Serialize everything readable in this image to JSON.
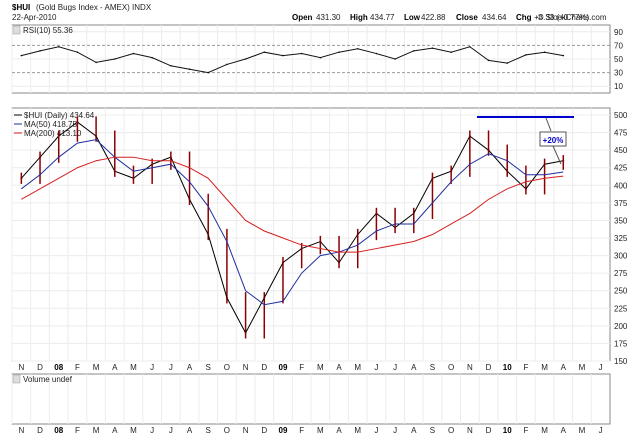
{
  "header": {
    "symbol": "$HUI",
    "name": "(Gold Bugs Index - AMEX) INDX",
    "date": "22-Apr-2010",
    "credit": "© StockCharts.com",
    "ohlc": {
      "open_label": "Open",
      "open": "431.30",
      "high_label": "High",
      "high": "434.77",
      "low_label": "Low",
      "low": "422.88",
      "close_label": "Close",
      "close": "434.64",
      "chg_label": "Chg",
      "chg": "+3.33 (+0.77%)"
    }
  },
  "rsi_panel": {
    "label": "RSI(10) 55.36",
    "yticks": [
      "90",
      "70",
      "50",
      "30",
      "10"
    ]
  },
  "price_panel": {
    "legend": [
      {
        "text": "$HUI (Daily) 434.64",
        "color": "#000000"
      },
      {
        "text": "MA(50) 418.75",
        "color": "#1f2e9e"
      },
      {
        "text": "MA(200) 413.10",
        "color": "#d42020"
      }
    ],
    "annotation": "+20%",
    "yticks": [
      "500",
      "475",
      "450",
      "425",
      "400",
      "375",
      "350",
      "325",
      "300",
      "275",
      "250",
      "225",
      "200",
      "175",
      "150"
    ]
  },
  "volume_panel": {
    "label": "Volume undef"
  },
  "x_axis": {
    "labels": [
      "N",
      "D",
      "08",
      "F",
      "M",
      "A",
      "M",
      "J",
      "J",
      "A",
      "S",
      "O",
      "N",
      "D",
      "09",
      "F",
      "M",
      "A",
      "M",
      "J",
      "J",
      "A",
      "S",
      "O",
      "N",
      "D",
      "10",
      "F",
      "M",
      "A",
      "M",
      "J"
    ]
  },
  "colors": {
    "price": "#8b0000",
    "ma50": "#1f2e9e",
    "ma200": "#d42020",
    "resistance": "#0000cc",
    "rsi": "#111111"
  },
  "chart_data": {
    "type": "line",
    "x": [
      "2007-11",
      "2007-12",
      "2008-01",
      "2008-02",
      "2008-03",
      "2008-04",
      "2008-05",
      "2008-06",
      "2008-07",
      "2008-08",
      "2008-09",
      "2008-10",
      "2008-11",
      "2008-12",
      "2009-01",
      "2009-02",
      "2009-03",
      "2009-04",
      "2009-05",
      "2009-06",
      "2009-07",
      "2009-08",
      "2009-09",
      "2009-10",
      "2009-11",
      "2009-12",
      "2010-01",
      "2010-02",
      "2010-03",
      "2010-04"
    ],
    "series": [
      {
        "name": "$HUI (Daily) 434.64",
        "values": [
          410,
          440,
          470,
          490,
          470,
          420,
          410,
          430,
          440,
          380,
          330,
          240,
          190,
          240,
          290,
          310,
          320,
          290,
          330,
          360,
          340,
          360,
          410,
          420,
          470,
          450,
          420,
          395,
          430,
          435
        ]
      },
      {
        "name": "MA(50) 418.75",
        "values": [
          395,
          415,
          440,
          460,
          465,
          440,
          420,
          425,
          430,
          405,
          370,
          320,
          250,
          230,
          235,
          275,
          300,
          305,
          315,
          335,
          345,
          345,
          375,
          405,
          430,
          445,
          435,
          415,
          415,
          419
        ]
      },
      {
        "name": "MA(200) 413.10",
        "values": [
          380,
          395,
          410,
          425,
          435,
          440,
          440,
          435,
          435,
          425,
          410,
          380,
          350,
          335,
          325,
          315,
          310,
          305,
          305,
          310,
          315,
          320,
          330,
          345,
          360,
          380,
          395,
          405,
          410,
          413
        ]
      },
      {
        "name": "RSI(10) 55.36",
        "values": [
          55,
          62,
          68,
          60,
          45,
          50,
          58,
          52,
          40,
          35,
          30,
          42,
          50,
          60,
          55,
          58,
          52,
          60,
          65,
          58,
          50,
          62,
          66,
          60,
          68,
          48,
          44,
          56,
          60,
          55
        ]
      }
    ],
    "ylim": [
      150,
      510
    ],
    "rsi_ylim": [
      0,
      100
    ],
    "resistance_level": 510,
    "grid": true
  }
}
